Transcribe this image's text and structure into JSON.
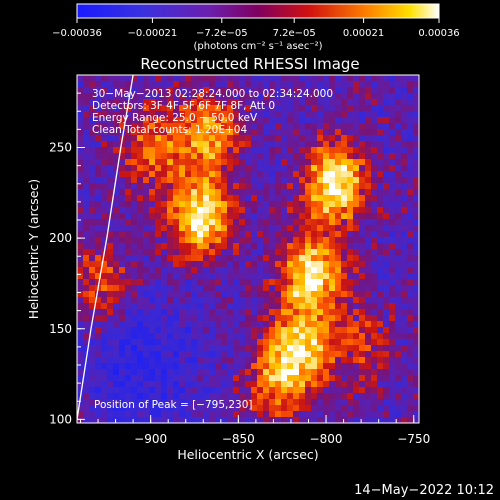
{
  "chart_data": {
    "type": "heatmap",
    "title": "Reconstructed RHESSI Image",
    "xlabel": "Heliocentric X (arcsec)",
    "ylabel": "Heliocentric Y (arcsec)",
    "xlim": [
      -942,
      -747
    ],
    "ylim": [
      98,
      290
    ],
    "xticks": [
      -900,
      -850,
      -800,
      -750
    ],
    "xtick_labels": [
      "−900",
      "−850",
      "−800",
      "−750"
    ],
    "yticks": [
      100,
      150,
      200,
      250
    ],
    "ytick_labels": [
      "100",
      "150",
      "200",
      "250"
    ],
    "colorbar": {
      "range": [
        -0.00036,
        0.00036
      ],
      "tick_values": [
        -0.00036,
        -0.00021,
        -7.2e-05,
        7.2e-05,
        0.00021,
        0.00036
      ],
      "tick_labels": [
        "−0.00036",
        "−0.00021",
        "−7.2e−05",
        "7.2e−05",
        "0.00021",
        "0.00036"
      ],
      "label": "(photons cm⁻² s⁻¹ asec⁻²)",
      "colormap": "blue-purple-red-yellow-white"
    },
    "info_lines": [
      "30−May−2013 02:28:24.000 to 02:34:24.000",
      "Detectors: 3F 4F 5F 6F 7F 8F, Att 0",
      "Energy Range: 25.0 − 50.0 keV",
      "Clean    Total counts: 1.20E+04"
    ],
    "peak_label": "Position of Peak = [−795,230]",
    "peak": [
      -795,
      230
    ],
    "sources": [
      {
        "x": -872,
        "y": 212,
        "amplitude": 1.0
      },
      {
        "x": -868,
        "y": 258,
        "amplitude": 0.75
      },
      {
        "x": -900,
        "y": 250,
        "amplitude": 0.55
      },
      {
        "x": -795,
        "y": 230,
        "amplitude": 1.05
      },
      {
        "x": -808,
        "y": 180,
        "amplitude": 1.0
      },
      {
        "x": -815,
        "y": 140,
        "amplitude": 0.85
      },
      {
        "x": -828,
        "y": 120,
        "amplitude": 0.6
      },
      {
        "x": -780,
        "y": 140,
        "amplitude": 0.4
      },
      {
        "x": -928,
        "y": 175,
        "amplitude": 0.5
      }
    ]
  },
  "colors": {
    "background": "#000000",
    "foreground": "#ffffff",
    "colormap_stops": [
      "#1020ff",
      "#5a24c8",
      "#7a1080",
      "#c81010",
      "#ff6a00",
      "#ffd000",
      "#ffffff"
    ]
  },
  "footer": {
    "timestamp": "14−May−2022 10:12"
  }
}
